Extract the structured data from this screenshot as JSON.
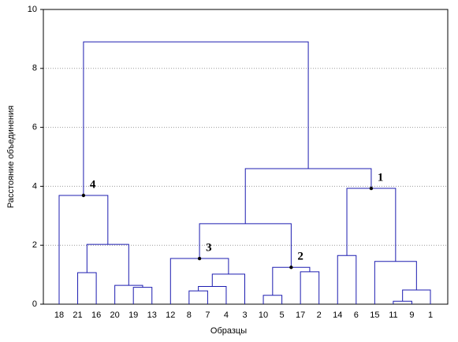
{
  "chart_data": {
    "type": "dendrogram",
    "xlabel": "Образцы",
    "ylabel": "Расстояние объединения",
    "ylim": [
      0,
      10
    ],
    "yticks": [
      0,
      2,
      4,
      6,
      8,
      10
    ],
    "grid": true,
    "color": "#1c1cb0",
    "tree": {
      "height": 8.9,
      "children": [
        {
          "height": 3.69,
          "annotation": "4",
          "children": [
            {
              "label": "18"
            },
            {
              "height": 2.03,
              "children": [
                {
                  "height": 1.07,
                  "children": [
                    {
                      "label": "21"
                    },
                    {
                      "label": "16"
                    }
                  ]
                },
                {
                  "height": 0.64,
                  "children": [
                    {
                      "label": "20"
                    },
                    {
                      "height": 0.57,
                      "children": [
                        {
                          "label": "19"
                        },
                        {
                          "label": "13"
                        }
                      ]
                    }
                  ]
                }
              ]
            }
          ]
        },
        {
          "height": 4.6,
          "children": [
            {
              "height": 2.73,
              "children": [
                {
                  "height": 1.55,
                  "annotation": "3",
                  "children": [
                    {
                      "label": "12"
                    },
                    {
                      "height": 1.02,
                      "children": [
                        {
                          "height": 0.6,
                          "children": [
                            {
                              "height": 0.45,
                              "children": [
                                {
                                  "label": "8"
                                },
                                {
                                  "label": "7"
                                }
                              ]
                            },
                            {
                              "label": "4"
                            }
                          ]
                        },
                        {
                          "label": "3"
                        }
                      ]
                    }
                  ]
                },
                {
                  "height": 1.25,
                  "annotation": "2",
                  "children": [
                    {
                      "height": 0.3,
                      "children": [
                        {
                          "label": "10"
                        },
                        {
                          "label": "5"
                        }
                      ]
                    },
                    {
                      "height": 1.1,
                      "children": [
                        {
                          "label": "17"
                        },
                        {
                          "label": "2"
                        }
                      ]
                    }
                  ]
                }
              ]
            },
            {
              "height": 3.93,
              "annotation": "1",
              "children": [
                {
                  "height": 1.65,
                  "children": [
                    {
                      "label": "14"
                    },
                    {
                      "label": "6"
                    }
                  ]
                },
                {
                  "height": 1.45,
                  "children": [
                    {
                      "label": "15"
                    },
                    {
                      "height": 0.48,
                      "children": [
                        {
                          "height": 0.1,
                          "children": [
                            {
                              "label": "11"
                            },
                            {
                              "label": "9"
                            }
                          ]
                        },
                        {
                          "label": "1"
                        }
                      ]
                    }
                  ]
                }
              ]
            }
          ]
        }
      ]
    }
  }
}
